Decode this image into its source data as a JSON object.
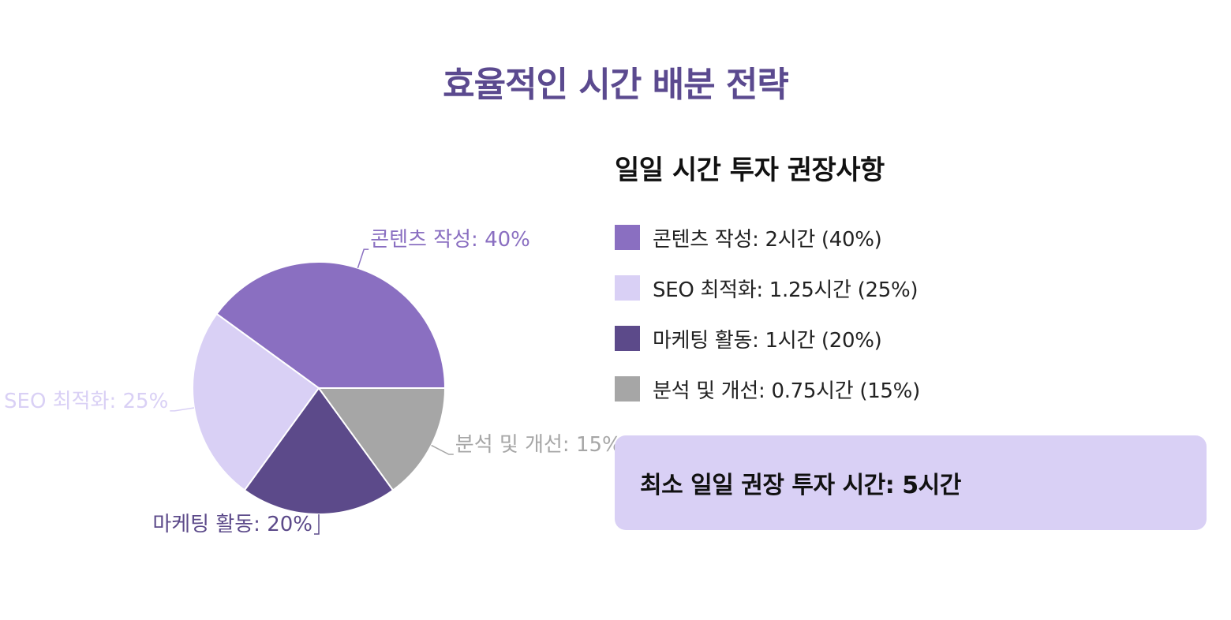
{
  "title": "효율적인 시간 배분 전략",
  "panel": {
    "heading": "일일 시간 투자 권장사항",
    "legend": [
      {
        "label": "콘텐츠 작성: 2시간 (40%)",
        "color": "#8a6fc1"
      },
      {
        "label": "SEO 최적화: 1.25시간 (25%)",
        "color": "#d9d0f5"
      },
      {
        "label": "마케팅 활동: 1시간 (20%)",
        "color": "#5c4a8a"
      },
      {
        "label": "분석 및 개선: 0.75시간 (15%)",
        "color": "#a6a6a6"
      }
    ],
    "summary": "최소 일일 권장 투자 시간: 5시간"
  },
  "colors": {
    "title": "#5b4a8f",
    "summary_bg": "#d9d0f5",
    "slice_border": "#ffffff",
    "text_dark": "#111111"
  },
  "chart_data": {
    "type": "pie",
    "title": "",
    "categories": [
      "콘텐츠 작성",
      "SEO 최적화",
      "마케팅 활동",
      "분석 및 개선"
    ],
    "values": [
      40,
      25,
      20,
      15
    ],
    "unit": "%",
    "colors": [
      "#8a6fc1",
      "#d9d0f5",
      "#5c4a8a",
      "#a6a6a6"
    ],
    "labels": [
      "콘텐츠 작성: 40%",
      "SEO 최적화: 25%",
      "마케팅 활동: 20%",
      "분석 및 개선: 15%"
    ],
    "start_angle_deg": 0,
    "direction": "counterclockwise",
    "legend": "none"
  }
}
